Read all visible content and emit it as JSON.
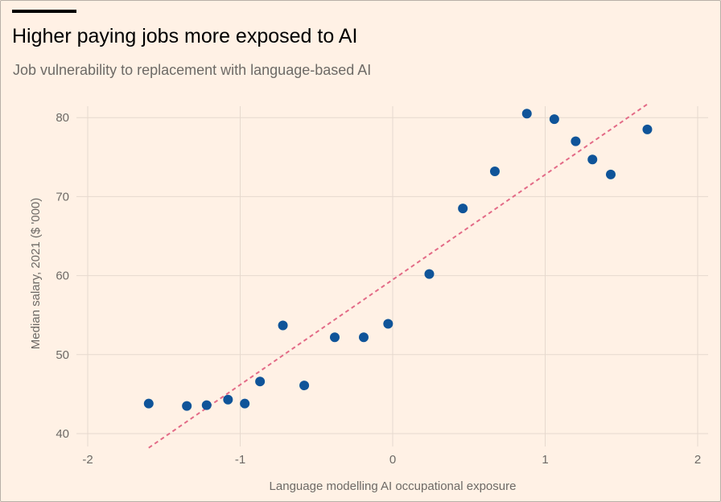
{
  "header": {
    "title": "Higher paying jobs more exposed to AI",
    "subtitle": "Job vulnerability to replacement with language-based AI"
  },
  "colors": {
    "background": "#fff1e5",
    "point": "#0f5499",
    "trend": "#e36b87",
    "grid": "#e6d9ce",
    "text": "#6d6a66"
  },
  "chart_data": {
    "type": "scatter",
    "xlabel": "Language modelling AI occupational exposure",
    "ylabel": "Median salary, 2021 ($ '000)",
    "xlim": [
      -2.05,
      2.05
    ],
    "ylim": [
      39,
      82
    ],
    "xticks": [
      -2,
      -1,
      0,
      1,
      2
    ],
    "yticks": [
      40,
      50,
      60,
      70,
      80
    ],
    "grid": true,
    "trendline": {
      "x": [
        -1.6,
        1.67
      ],
      "y": [
        38.2,
        81.7
      ],
      "style": "dashed"
    },
    "points": [
      {
        "x": -1.6,
        "y": 43.8
      },
      {
        "x": -1.35,
        "y": 43.5
      },
      {
        "x": -1.22,
        "y": 43.6
      },
      {
        "x": -1.08,
        "y": 44.3
      },
      {
        "x": -0.97,
        "y": 43.8
      },
      {
        "x": -0.87,
        "y": 46.6
      },
      {
        "x": -0.72,
        "y": 53.7
      },
      {
        "x": -0.58,
        "y": 46.1
      },
      {
        "x": -0.38,
        "y": 52.2
      },
      {
        "x": -0.19,
        "y": 52.2
      },
      {
        "x": -0.03,
        "y": 53.9
      },
      {
        "x": 0.24,
        "y": 60.2
      },
      {
        "x": 0.46,
        "y": 68.5
      },
      {
        "x": 0.67,
        "y": 73.2
      },
      {
        "x": 0.88,
        "y": 80.5
      },
      {
        "x": 1.06,
        "y": 79.8
      },
      {
        "x": 1.2,
        "y": 77.0
      },
      {
        "x": 1.31,
        "y": 74.7
      },
      {
        "x": 1.43,
        "y": 72.8
      },
      {
        "x": 1.67,
        "y": 78.5
      }
    ]
  }
}
